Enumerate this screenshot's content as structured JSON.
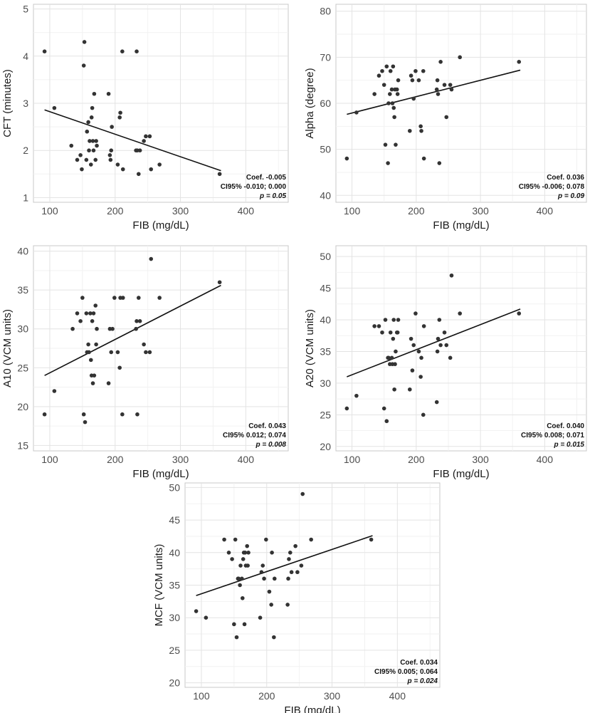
{
  "chart_data": [
    {
      "id": "cft",
      "type": "scatter",
      "xlabel": "FIB (mg/dL)",
      "ylabel": "CFT (minutes)",
      "xlim": [
        75,
        465
      ],
      "ylim": [
        0.9,
        5.1
      ],
      "xticks": [
        100,
        200,
        300,
        400
      ],
      "yticks": [
        1,
        2,
        3,
        4,
        5
      ],
      "trend": {
        "x": [
          92,
          362
        ],
        "y": [
          2.86,
          1.57
        ]
      },
      "stats": {
        "coef": "Coef. -0.005",
        "ci": "CI95% -0.010; 0.000",
        "p": "p = 0.05"
      },
      "points": [
        [
          92,
          4.1
        ],
        [
          107,
          2.9
        ],
        [
          133,
          2.1
        ],
        [
          142,
          1.8
        ],
        [
          147,
          1.9
        ],
        [
          149,
          1.6
        ],
        [
          152,
          3.8
        ],
        [
          153,
          4.3
        ],
        [
          156,
          1.8
        ],
        [
          157,
          2.4
        ],
        [
          159,
          2.6
        ],
        [
          160,
          2.0
        ],
        [
          161,
          2.2
        ],
        [
          163,
          1.7
        ],
        [
          164,
          2.7
        ],
        [
          165,
          2.9
        ],
        [
          166,
          2.2
        ],
        [
          167,
          2.0
        ],
        [
          168,
          3.2
        ],
        [
          170,
          1.8
        ],
        [
          171,
          2.2
        ],
        [
          172,
          2.1
        ],
        [
          190,
          3.2
        ],
        [
          192,
          1.9
        ],
        [
          193,
          1.8
        ],
        [
          194,
          2.0
        ],
        [
          195,
          2.5
        ],
        [
          204,
          1.7
        ],
        [
          207,
          2.7
        ],
        [
          208,
          2.8
        ],
        [
          211,
          4.1
        ],
        [
          212,
          1.6
        ],
        [
          232,
          2.0
        ],
        [
          233,
          4.1
        ],
        [
          234,
          2.0
        ],
        [
          236,
          1.5
        ],
        [
          238,
          2.0
        ],
        [
          244,
          2.2
        ],
        [
          247,
          2.3
        ],
        [
          253,
          2.3
        ],
        [
          255,
          1.6
        ],
        [
          268,
          1.7
        ],
        [
          360,
          1.5
        ]
      ]
    },
    {
      "id": "alpha",
      "type": "scatter",
      "xlabel": "FIB (mg/dL)",
      "ylabel": "Alpha (degree)",
      "xlim": [
        75,
        465
      ],
      "ylim": [
        38.5,
        81.5
      ],
      "xticks": [
        100,
        200,
        300,
        400
      ],
      "yticks": [
        40,
        50,
        60,
        70,
        80
      ],
      "trend": {
        "x": [
          92,
          362
        ],
        "y": [
          57.6,
          67.2
        ]
      },
      "stats": {
        "coef": "Coef. 0.036",
        "ci": "CI95% -0.006; 0.078",
        "p": "p = 0.09"
      },
      "points": [
        [
          92,
          48
        ],
        [
          107,
          58
        ],
        [
          135,
          62
        ],
        [
          142,
          66
        ],
        [
          147,
          67
        ],
        [
          150,
          64
        ],
        [
          152,
          51
        ],
        [
          154,
          68
        ],
        [
          156,
          47
        ],
        [
          157,
          60
        ],
        [
          159,
          62
        ],
        [
          160,
          67
        ],
        [
          162,
          63
        ],
        [
          163,
          60
        ],
        [
          164,
          68
        ],
        [
          165,
          59
        ],
        [
          166,
          57
        ],
        [
          167,
          63
        ],
        [
          168,
          51
        ],
        [
          170,
          63
        ],
        [
          171,
          62
        ],
        [
          172,
          65
        ],
        [
          190,
          54
        ],
        [
          192,
          66
        ],
        [
          194,
          65
        ],
        [
          196,
          61
        ],
        [
          199,
          67
        ],
        [
          204,
          65
        ],
        [
          207,
          55
        ],
        [
          208,
          54
        ],
        [
          211,
          67
        ],
        [
          212,
          48
        ],
        [
          232,
          63
        ],
        [
          233,
          65
        ],
        [
          234,
          62
        ],
        [
          236,
          47
        ],
        [
          238,
          69
        ],
        [
          244,
          64
        ],
        [
          247,
          57
        ],
        [
          253,
          64
        ],
        [
          255,
          63
        ],
        [
          268,
          70
        ],
        [
          360,
          69
        ]
      ]
    },
    {
      "id": "a10",
      "type": "scatter",
      "xlabel": "FIB (mg/dL)",
      "ylabel": "A10 (VCM units)",
      "xlim": [
        75,
        465
      ],
      "ylim": [
        14.3,
        40.7
      ],
      "xticks": [
        100,
        200,
        300,
        400
      ],
      "yticks": [
        15,
        20,
        25,
        30,
        35,
        40
      ],
      "trend": {
        "x": [
          92,
          362
        ],
        "y": [
          24.0,
          35.6
        ]
      },
      "stats": {
        "coef": "Coef. 0.043",
        "ci": "CI95% 0.012; 0.074",
        "p": "p = 0.008"
      },
      "points": [
        [
          92,
          19
        ],
        [
          107,
          22
        ],
        [
          135,
          30
        ],
        [
          142,
          32
        ],
        [
          147,
          31
        ],
        [
          150,
          34
        ],
        [
          152,
          19
        ],
        [
          154,
          18
        ],
        [
          156,
          32
        ],
        [
          157,
          27
        ],
        [
          159,
          28
        ],
        [
          160,
          27
        ],
        [
          162,
          32
        ],
        [
          163,
          26
        ],
        [
          164,
          24
        ],
        [
          165,
          31
        ],
        [
          166,
          23
        ],
        [
          167,
          32
        ],
        [
          168,
          24
        ],
        [
          170,
          33
        ],
        [
          171,
          28
        ],
        [
          172,
          30
        ],
        [
          190,
          23
        ],
        [
          192,
          30
        ],
        [
          194,
          27
        ],
        [
          196,
          30
        ],
        [
          199,
          34
        ],
        [
          204,
          27
        ],
        [
          207,
          25
        ],
        [
          208,
          34
        ],
        [
          211,
          19
        ],
        [
          212,
          34
        ],
        [
          232,
          30
        ],
        [
          233,
          31
        ],
        [
          234,
          19
        ],
        [
          236,
          34
        ],
        [
          238,
          31
        ],
        [
          244,
          28
        ],
        [
          247,
          27
        ],
        [
          253,
          27
        ],
        [
          255,
          39
        ],
        [
          268,
          34
        ],
        [
          360,
          36
        ]
      ]
    },
    {
      "id": "a20",
      "type": "scatter",
      "xlabel": "FIB (mg/dL)",
      "ylabel": "A20 (VCM units)",
      "xlim": [
        75,
        465
      ],
      "ylim": [
        19.3,
        51.7
      ],
      "xticks": [
        100,
        200,
        300,
        400
      ],
      "yticks": [
        20,
        25,
        30,
        35,
        40,
        45,
        50
      ],
      "trend": {
        "x": [
          92,
          362
        ],
        "y": [
          31.0,
          41.7
        ]
      },
      "stats": {
        "coef": "Coef. 0.040",
        "ci": "CI95% 0.008; 0.071",
        "p": "p = 0.015"
      },
      "points": [
        [
          92,
          26
        ],
        [
          107,
          28
        ],
        [
          135,
          39
        ],
        [
          142,
          39
        ],
        [
          147,
          38
        ],
        [
          150,
          26
        ],
        [
          152,
          40
        ],
        [
          154,
          24
        ],
        [
          156,
          34
        ],
        [
          157,
          34
        ],
        [
          159,
          33
        ],
        [
          160,
          38
        ],
        [
          162,
          34
        ],
        [
          163,
          33
        ],
        [
          164,
          37
        ],
        [
          165,
          40
        ],
        [
          166,
          29
        ],
        [
          167,
          33
        ],
        [
          168,
          35
        ],
        [
          170,
          38
        ],
        [
          171,
          38
        ],
        [
          172,
          40
        ],
        [
          190,
          29
        ],
        [
          192,
          37
        ],
        [
          194,
          32
        ],
        [
          196,
          36
        ],
        [
          199,
          41
        ],
        [
          204,
          35
        ],
        [
          207,
          31
        ],
        [
          208,
          34
        ],
        [
          211,
          25
        ],
        [
          212,
          39
        ],
        [
          232,
          27
        ],
        [
          233,
          35
        ],
        [
          234,
          37
        ],
        [
          236,
          40
        ],
        [
          238,
          36
        ],
        [
          244,
          38
        ],
        [
          247,
          36
        ],
        [
          253,
          34
        ],
        [
          255,
          47
        ],
        [
          268,
          41
        ],
        [
          360,
          41
        ]
      ]
    },
    {
      "id": "mcf",
      "type": "scatter",
      "xlabel": "FIB (mg/dL)",
      "ylabel": "MCF (VCM units)",
      "xlim": [
        75,
        465
      ],
      "ylim": [
        19.3,
        50.7
      ],
      "xticks": [
        100,
        200,
        300,
        400
      ],
      "yticks": [
        20,
        25,
        30,
        35,
        40,
        45,
        50
      ],
      "trend": {
        "x": [
          92,
          362
        ],
        "y": [
          33.4,
          42.6
        ]
      },
      "stats": {
        "coef": "Coef. 0.034",
        "ci": "CI95% 0.005; 0.064",
        "p": "p = 0.024"
      },
      "points": [
        [
          92,
          31
        ],
        [
          107,
          30
        ],
        [
          135,
          42
        ],
        [
          142,
          40
        ],
        [
          147,
          39
        ],
        [
          150,
          29
        ],
        [
          152,
          42
        ],
        [
          154,
          27
        ],
        [
          156,
          36
        ],
        [
          157,
          36
        ],
        [
          159,
          35
        ],
        [
          160,
          38
        ],
        [
          162,
          36
        ],
        [
          163,
          33
        ],
        [
          164,
          39
        ],
        [
          165,
          40
        ],
        [
          166,
          29
        ],
        [
          167,
          40
        ],
        [
          168,
          38
        ],
        [
          170,
          41
        ],
        [
          171,
          38
        ],
        [
          172,
          40
        ],
        [
          190,
          30
        ],
        [
          192,
          37
        ],
        [
          194,
          38
        ],
        [
          196,
          36
        ],
        [
          199,
          42
        ],
        [
          204,
          34
        ],
        [
          207,
          32
        ],
        [
          208,
          40
        ],
        [
          211,
          27
        ],
        [
          212,
          36
        ],
        [
          232,
          32
        ],
        [
          233,
          36
        ],
        [
          234,
          39
        ],
        [
          236,
          40
        ],
        [
          238,
          37
        ],
        [
          244,
          41
        ],
        [
          247,
          37
        ],
        [
          253,
          38
        ],
        [
          255,
          49
        ],
        [
          268,
          42
        ],
        [
          360,
          42
        ]
      ]
    }
  ]
}
